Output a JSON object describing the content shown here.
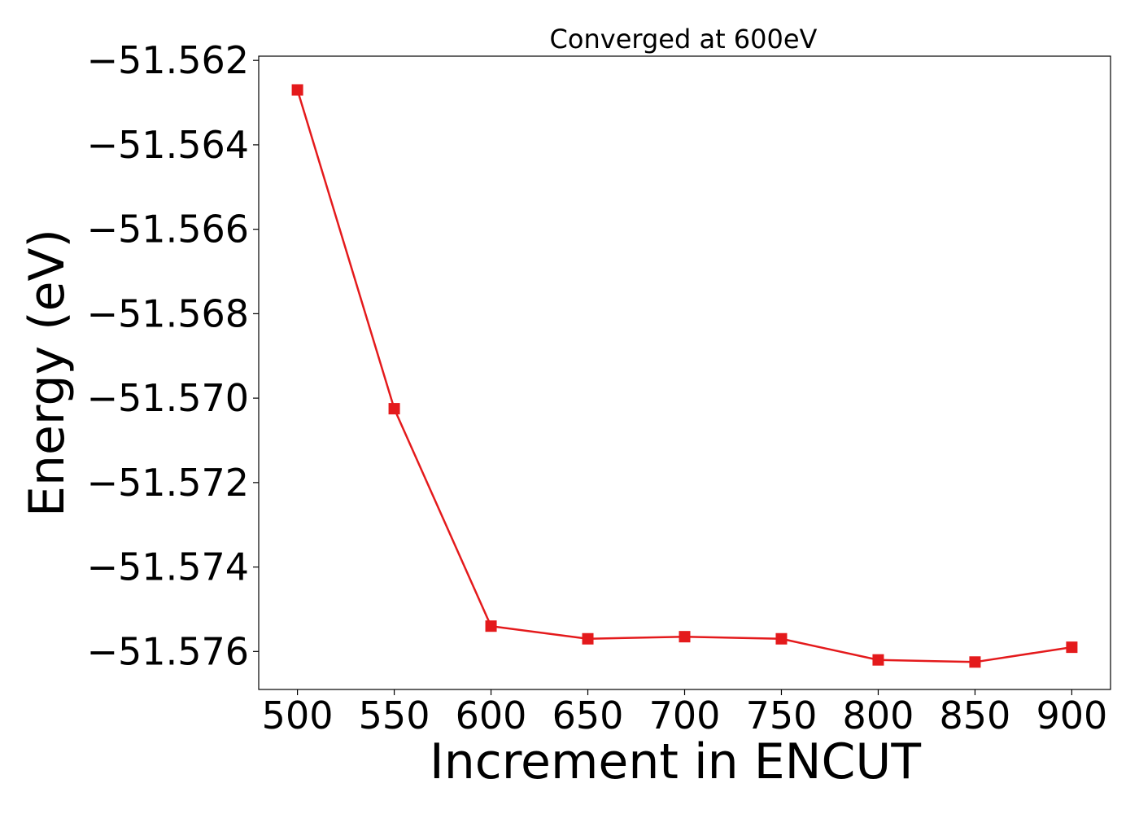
{
  "chart_data": {
    "type": "line",
    "title": "Converged at 600eV",
    "xlabel": "Increment in ENCUT",
    "ylabel": "Energy (eV)",
    "x": [
      500,
      550,
      600,
      650,
      700,
      750,
      800,
      850,
      900
    ],
    "series": [
      {
        "values": [
          -51.5627,
          -51.57025,
          -51.5754,
          -51.5757,
          -51.57565,
          -51.5757,
          -51.5762,
          -51.57625,
          -51.5759
        ],
        "color": "#e41a1c",
        "marker": "square"
      }
    ],
    "xticks": [
      500,
      550,
      600,
      650,
      700,
      750,
      800,
      850,
      900
    ],
    "xtick_labels": [
      "500",
      "550",
      "600",
      "650",
      "700",
      "750",
      "800",
      "850",
      "900"
    ],
    "yticks": [
      -51.562,
      -51.564,
      -51.566,
      -51.568,
      -51.57,
      -51.572,
      -51.574,
      -51.576
    ],
    "ytick_labels": [
      "−51.562",
      "−51.564",
      "−51.566",
      "−51.568",
      "−51.570",
      "−51.572",
      "−51.574",
      "−51.576"
    ],
    "xlim": [
      480,
      920
    ],
    "ylim": [
      -51.5769,
      -51.5619
    ],
    "grid": false,
    "legend": "none"
  }
}
